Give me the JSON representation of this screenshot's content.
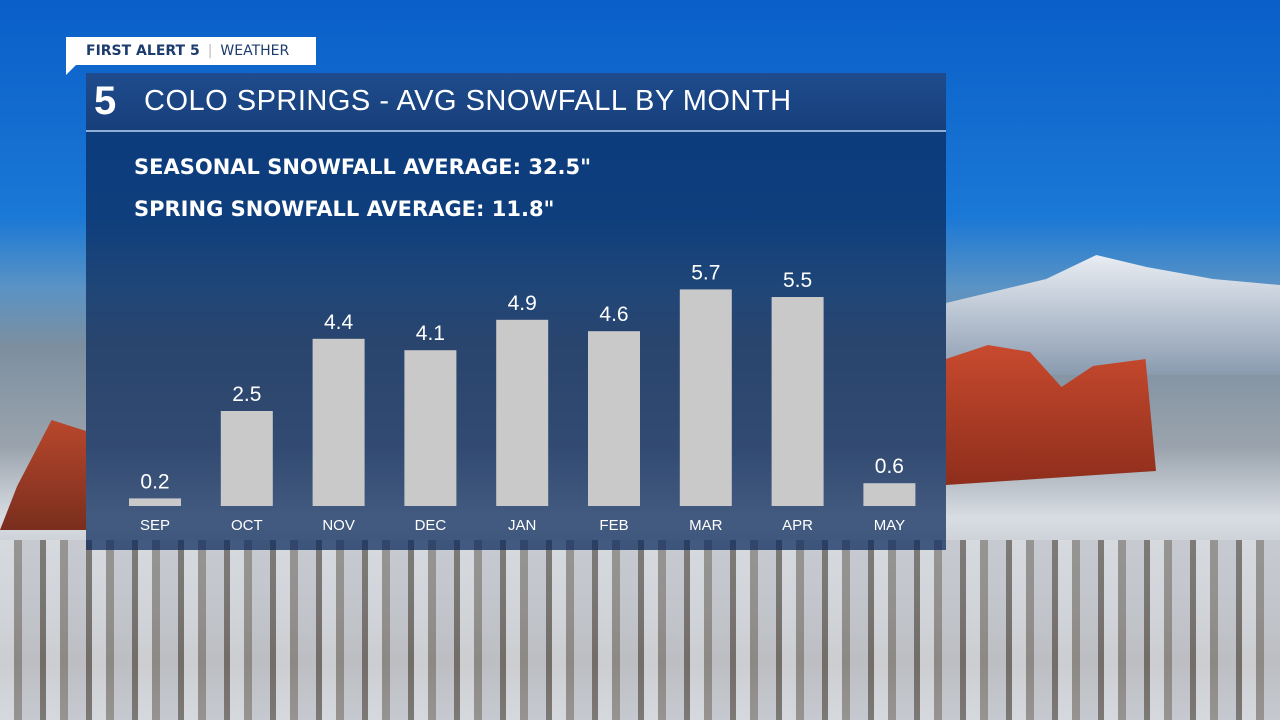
{
  "brand": {
    "tag_bold": "FIRST ALERT 5",
    "tag_divider": "|",
    "tag_light": "WEATHER",
    "logo": "5"
  },
  "header": {
    "title": "COLO SPRINGS - AVG SNOWFALL BY MONTH"
  },
  "stats": {
    "seasonal": "SEASONAL SNOWFALL AVERAGE: 32.5\"",
    "spring": "SPRING SNOWFALL AVERAGE: 11.8\""
  },
  "colors": {
    "bar": "#c9c9c9",
    "panel": "#0a285a",
    "header": "#1f4c8e"
  },
  "chart_data": {
    "type": "bar",
    "title": "COLO SPRINGS - AVG SNOWFALL BY MONTH",
    "categories": [
      "SEP",
      "OCT",
      "NOV",
      "DEC",
      "JAN",
      "FEB",
      "MAR",
      "APR",
      "MAY"
    ],
    "values": [
      0.2,
      2.5,
      4.4,
      4.1,
      4.9,
      4.6,
      5.7,
      5.5,
      0.6
    ],
    "data_labels": [
      "0.2",
      "2.5",
      "4.4",
      "4.1",
      "4.9",
      "4.6",
      "5.7",
      "5.5",
      "0.6"
    ],
    "ylim": [
      0,
      6
    ],
    "grid": false,
    "legend": "none"
  }
}
